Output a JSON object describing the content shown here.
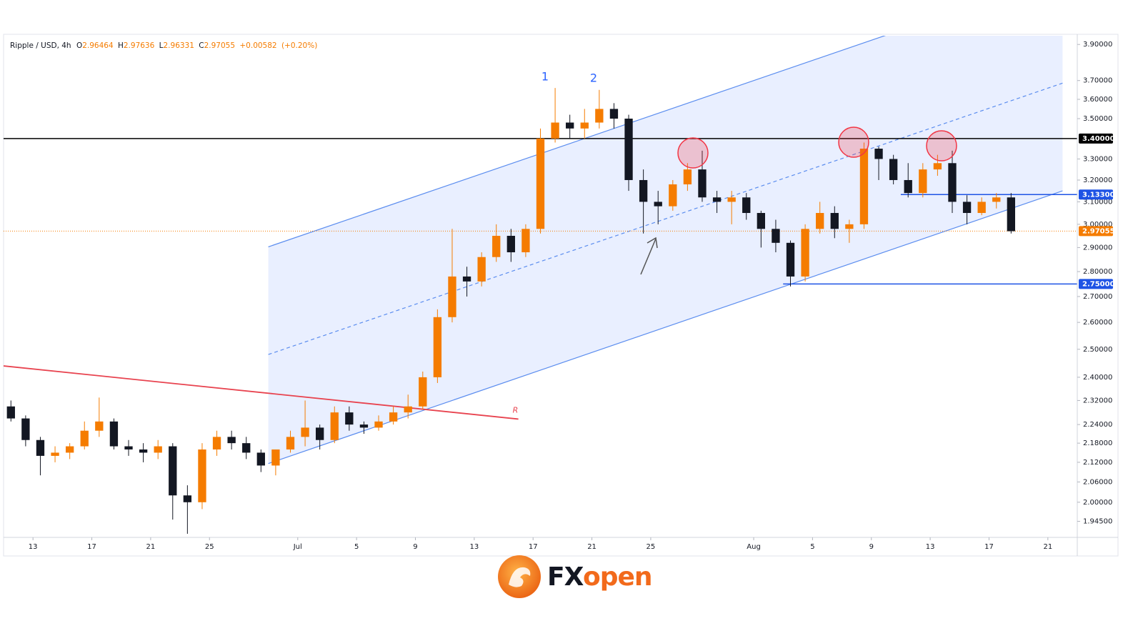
{
  "chart_data": {
    "type": "candlestick",
    "legend": {
      "symbol": "Ripple / USD, 4h",
      "o_key": "O",
      "open": 2.96464,
      "h_key": "H",
      "high": 2.97636,
      "l_key": "L",
      "low": 2.96331,
      "c_key": "C",
      "close": 2.97055,
      "change": "+0.00582",
      "change_pct": "(+0.20%)"
    },
    "log_scale": true,
    "up_color": "#f57c00",
    "down_color": "#131722",
    "xlim": [
      "06-11",
      "08-23"
    ],
    "xticks": [
      {
        "value": "06-13",
        "label": "13"
      },
      {
        "value": "06-17",
        "label": "17"
      },
      {
        "value": "06-21",
        "label": "21"
      },
      {
        "value": "06-25",
        "label": "25"
      },
      {
        "value": "07-01",
        "label": "Jul"
      },
      {
        "value": "07-05",
        "label": "5"
      },
      {
        "value": "07-09",
        "label": "9"
      },
      {
        "value": "07-13",
        "label": "13"
      },
      {
        "value": "07-17",
        "label": "17"
      },
      {
        "value": "07-21",
        "label": "21"
      },
      {
        "value": "07-25",
        "label": "25"
      },
      {
        "value": "08-01",
        "label": "Aug"
      },
      {
        "value": "08-05",
        "label": "5"
      },
      {
        "value": "08-09",
        "label": "9"
      },
      {
        "value": "08-13",
        "label": "13"
      },
      {
        "value": "08-17",
        "label": "17"
      },
      {
        "value": "08-21",
        "label": "21"
      }
    ],
    "ylim": [
      1.9,
      3.95
    ],
    "yticks": [
      {
        "value": 3.9,
        "label": "3.90000"
      },
      {
        "value": 3.7,
        "label": "3.70000"
      },
      {
        "value": 3.6,
        "label": "3.60000"
      },
      {
        "value": 3.5,
        "label": "3.50000"
      },
      {
        "value": 3.3,
        "label": "3.30000"
      },
      {
        "value": 3.2,
        "label": "3.20000"
      },
      {
        "value": 3.1,
        "label": "3.10000"
      },
      {
        "value": 3.0,
        "label": "3.00000"
      },
      {
        "value": 2.9,
        "label": "2.90000"
      },
      {
        "value": 2.8,
        "label": "2.80000"
      },
      {
        "value": 2.7,
        "label": "2.70000"
      },
      {
        "value": 2.6,
        "label": "2.60000"
      },
      {
        "value": 2.5,
        "label": "2.50000"
      },
      {
        "value": 2.4,
        "label": "2.40000"
      },
      {
        "value": 2.32,
        "label": "2.32000"
      },
      {
        "value": 2.24,
        "label": "2.24000"
      },
      {
        "value": 2.18,
        "label": "2.18000"
      },
      {
        "value": 2.12,
        "label": "2.12000"
      },
      {
        "value": 2.06,
        "label": "2.06000"
      },
      {
        "value": 2.0,
        "label": "2.00000"
      },
      {
        "value": 1.945,
        "label": "1.94500"
      }
    ],
    "levels": [
      {
        "value": 3.4,
        "label": "3.40000",
        "color": "#000000"
      },
      {
        "value": 3.133,
        "label": "3.13300",
        "color": "#1e53e5",
        "from": "08-11"
      },
      {
        "value": 2.97055,
        "label": "2.97055",
        "color": "#f57c00",
        "dotted": true
      },
      {
        "value": 2.75,
        "label": "2.75000",
        "color": "#1e53e5",
        "from": "08-03"
      }
    ],
    "channel": {
      "color": "#5b8def",
      "upper": {
        "x": [
          "06-29",
          "08-10"
        ],
        "y": [
          2.903,
          3.953
        ]
      },
      "middle": {
        "x": [
          "06-29",
          "08-22"
        ],
        "y": [
          2.481,
          3.686
        ]
      },
      "lower": {
        "x": [
          "06-29",
          "08-22"
        ],
        "y": [
          2.116,
          3.15
        ]
      }
    },
    "resistance": {
      "label": "R",
      "color": "#e8434f",
      "x": [
        "06-11",
        "07-16"
      ],
      "y": [
        2.44,
        2.258
      ]
    },
    "annotations": [
      "1",
      "2"
    ],
    "x": [
      "06-11",
      "06-12",
      "06-13",
      "06-14",
      "06-15",
      "06-16",
      "06-17",
      "06-18",
      "06-19",
      "06-20",
      "06-21",
      "06-22",
      "06-23",
      "06-24",
      "06-25",
      "06-26",
      "06-27",
      "06-28",
      "06-29",
      "06-30",
      "07-01",
      "07-02",
      "07-03",
      "07-04",
      "07-05",
      "07-06",
      "07-07",
      "07-08",
      "07-09",
      "07-10",
      "07-11",
      "07-12",
      "07-13",
      "07-14",
      "07-15",
      "07-16",
      "07-17",
      "07-18",
      "07-19",
      "07-20",
      "07-21",
      "07-22",
      "07-23",
      "07-24",
      "07-25",
      "07-26",
      "07-27",
      "07-28",
      "07-29",
      "07-30",
      "07-31",
      "08-01",
      "08-02",
      "08-03",
      "08-04",
      "08-05",
      "08-06",
      "08-07",
      "08-08",
      "08-09",
      "08-10",
      "08-11",
      "08-12",
      "08-13",
      "08-14",
      "08-15",
      "08-16",
      "08-17",
      "08-18"
    ],
    "open": [
      2.3,
      2.26,
      2.19,
      2.14,
      2.15,
      2.17,
      2.22,
      2.25,
      2.17,
      2.16,
      2.15,
      2.17,
      2.02,
      2.0,
      2.16,
      2.2,
      2.18,
      2.15,
      2.11,
      2.16,
      2.2,
      2.23,
      2.19,
      2.28,
      2.24,
      2.23,
      2.25,
      2.28,
      2.3,
      2.4,
      2.62,
      2.78,
      2.76,
      2.86,
      2.95,
      2.88,
      2.98,
      3.4,
      3.48,
      3.45,
      3.48,
      3.55,
      3.5,
      3.2,
      3.1,
      3.08,
      3.18,
      3.25,
      3.12,
      3.1,
      3.12,
      3.05,
      2.98,
      2.92,
      2.78,
      2.98,
      3.05,
      2.98,
      3.0,
      3.35,
      3.3,
      3.2,
      3.14,
      3.25,
      3.28,
      3.1,
      3.05,
      3.1,
      3.12
    ],
    "high": [
      2.32,
      2.27,
      2.2,
      2.17,
      2.18,
      2.25,
      2.33,
      2.26,
      2.19,
      2.18,
      2.19,
      2.18,
      2.05,
      2.18,
      2.22,
      2.22,
      2.2,
      2.16,
      2.16,
      2.22,
      2.32,
      2.24,
      2.3,
      2.3,
      2.25,
      2.27,
      2.3,
      2.34,
      2.42,
      2.65,
      2.98,
      2.82,
      2.88,
      3.0,
      2.98,
      3.0,
      3.45,
      3.66,
      3.52,
      3.55,
      3.65,
      3.58,
      3.52,
      3.25,
      3.15,
      3.2,
      3.28,
      3.34,
      3.15,
      3.15,
      3.14,
      3.06,
      3.02,
      2.93,
      3.0,
      3.1,
      3.08,
      3.02,
      3.38,
      3.36,
      3.32,
      3.28,
      3.28,
      3.32,
      3.34,
      3.13,
      3.12,
      3.14,
      3.14
    ],
    "low": [
      2.25,
      2.17,
      2.08,
      2.12,
      2.13,
      2.16,
      2.2,
      2.16,
      2.14,
      2.12,
      2.13,
      1.95,
      1.91,
      1.98,
      2.14,
      2.16,
      2.13,
      2.09,
      2.08,
      2.15,
      2.17,
      2.16,
      2.18,
      2.22,
      2.21,
      2.22,
      2.24,
      2.26,
      2.29,
      2.38,
      2.6,
      2.7,
      2.74,
      2.84,
      2.84,
      2.86,
      2.96,
      3.38,
      3.4,
      3.4,
      3.45,
      3.45,
      3.15,
      2.96,
      3.0,
      3.06,
      3.15,
      3.1,
      3.05,
      3.0,
      3.02,
      2.9,
      2.88,
      2.74,
      2.76,
      2.96,
      2.94,
      2.92,
      2.98,
      3.2,
      3.18,
      3.12,
      3.12,
      3.22,
      3.05,
      3.0,
      3.04,
      3.07,
      2.96
    ],
    "close": [
      2.26,
      2.19,
      2.14,
      2.15,
      2.17,
      2.22,
      2.25,
      2.17,
      2.16,
      2.15,
      2.17,
      2.02,
      2.0,
      2.16,
      2.2,
      2.18,
      2.15,
      2.11,
      2.16,
      2.2,
      2.23,
      2.19,
      2.28,
      2.24,
      2.23,
      2.25,
      2.28,
      2.3,
      2.4,
      2.62,
      2.78,
      2.76,
      2.86,
      2.95,
      2.88,
      2.98,
      3.4,
      3.48,
      3.45,
      3.48,
      3.55,
      3.5,
      3.2,
      3.1,
      3.08,
      3.18,
      3.25,
      3.12,
      3.1,
      3.12,
      3.05,
      2.98,
      2.92,
      2.78,
      2.98,
      3.05,
      2.98,
      3.0,
      3.35,
      3.3,
      3.2,
      3.14,
      3.25,
      3.28,
      3.1,
      3.05,
      3.1,
      3.12,
      2.97
    ]
  },
  "brand": {
    "fx": "FX",
    "open": "open"
  }
}
